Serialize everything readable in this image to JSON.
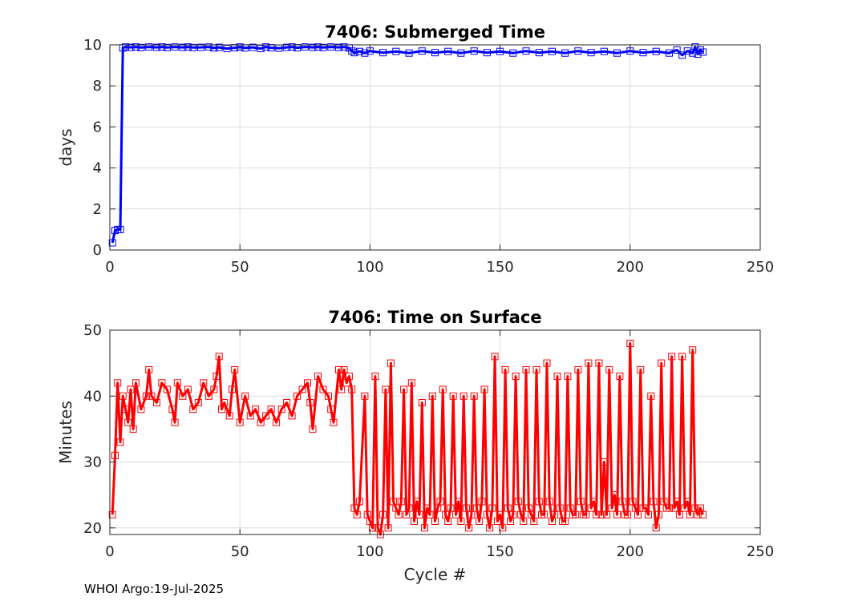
{
  "footer": "WHOI Argo:19-Jul-2025",
  "chart_data": [
    {
      "type": "line",
      "title": "7406: Submerged Time",
      "xlabel": "",
      "ylabel": "days",
      "xlim": [
        0,
        250
      ],
      "ylim": [
        0,
        10
      ],
      "xticks": [
        0,
        50,
        100,
        150,
        200,
        250
      ],
      "yticks": [
        0,
        2,
        4,
        6,
        8,
        10
      ],
      "grid": true,
      "marker": "square",
      "color": "#0000ff",
      "series": [
        {
          "name": "",
          "x": [
            1,
            2,
            3,
            4,
            5,
            6,
            8,
            10,
            12,
            15,
            18,
            20,
            22,
            25,
            28,
            30,
            32,
            35,
            38,
            40,
            42,
            45,
            48,
            50,
            52,
            55,
            58,
            60,
            62,
            65,
            68,
            70,
            72,
            75,
            78,
            80,
            82,
            85,
            88,
            90,
            92,
            93,
            94,
            96,
            98,
            100,
            105,
            110,
            115,
            120,
            125,
            130,
            135,
            140,
            145,
            150,
            155,
            160,
            165,
            170,
            175,
            180,
            185,
            190,
            195,
            200,
            205,
            210,
            215,
            218,
            220,
            222,
            224,
            225,
            226,
            227,
            228
          ],
          "y": [
            0.35,
            0.95,
            1.0,
            1.0,
            9.85,
            9.9,
            9.88,
            9.9,
            9.87,
            9.9,
            9.88,
            9.9,
            9.87,
            9.9,
            9.88,
            9.9,
            9.87,
            9.88,
            9.9,
            9.85,
            9.88,
            9.82,
            9.86,
            9.9,
            9.85,
            9.88,
            9.82,
            9.9,
            9.86,
            9.84,
            9.88,
            9.9,
            9.86,
            9.9,
            9.88,
            9.9,
            9.87,
            9.9,
            9.88,
            9.9,
            9.85,
            9.7,
            9.62,
            9.68,
            9.6,
            9.7,
            9.62,
            9.68,
            9.6,
            9.7,
            9.62,
            9.68,
            9.6,
            9.7,
            9.62,
            9.68,
            9.6,
            9.7,
            9.62,
            9.68,
            9.6,
            9.7,
            9.62,
            9.68,
            9.6,
            9.7,
            9.62,
            9.68,
            9.6,
            9.75,
            9.5,
            9.7,
            9.6,
            9.9,
            9.55,
            9.75,
            9.65
          ]
        }
      ]
    },
    {
      "type": "line",
      "title": "7406: Time on Surface",
      "xlabel": "Cycle #",
      "ylabel": "Minutes",
      "xlim": [
        0,
        250
      ],
      "ylim": [
        19,
        50
      ],
      "xticks": [
        0,
        50,
        100,
        150,
        200,
        250
      ],
      "yticks": [
        20,
        30,
        40,
        50
      ],
      "grid": true,
      "marker": "square",
      "color": "#ff0000",
      "series": [
        {
          "name": "",
          "x": [
            1,
            2,
            3,
            4,
            5,
            6,
            7,
            8,
            9,
            10,
            12,
            14,
            15,
            16,
            18,
            20,
            22,
            24,
            25,
            26,
            28,
            30,
            32,
            34,
            36,
            38,
            40,
            41,
            42,
            43,
            44,
            46,
            47,
            48,
            50,
            52,
            54,
            56,
            58,
            60,
            62,
            64,
            66,
            68,
            70,
            72,
            74,
            76,
            77,
            78,
            80,
            82,
            84,
            85,
            86,
            88,
            89,
            90,
            91,
            92,
            93,
            94,
            95,
            96,
            98,
            99,
            100,
            101,
            102,
            103,
            104,
            105,
            106,
            107,
            108,
            109,
            110,
            111,
            112,
            113,
            114,
            115,
            116,
            117,
            118,
            119,
            120,
            121,
            122,
            123,
            124,
            125,
            126,
            127,
            128,
            129,
            130,
            131,
            132,
            133,
            134,
            135,
            136,
            137,
            138,
            139,
            140,
            141,
            142,
            143,
            144,
            145,
            146,
            147,
            148,
            149,
            150,
            151,
            152,
            153,
            154,
            155,
            156,
            157,
            158,
            159,
            160,
            161,
            162,
            163,
            164,
            165,
            166,
            167,
            168,
            169,
            170,
            171,
            172,
            173,
            174,
            175,
            176,
            177,
            178,
            179,
            180,
            181,
            182,
            183,
            184,
            185,
            186,
            187,
            188,
            189,
            190,
            191,
            192,
            193,
            194,
            195,
            196,
            197,
            198,
            199,
            200,
            201,
            202,
            203,
            204,
            205,
            206,
            207,
            208,
            209,
            210,
            211,
            212,
            213,
            214,
            215,
            216,
            217,
            218,
            219,
            220,
            221,
            222,
            223,
            224,
            225,
            226,
            227,
            228
          ],
          "y": [
            22,
            31,
            42,
            33,
            40,
            38,
            36,
            41,
            35,
            42,
            38,
            40,
            44,
            40,
            39,
            42,
            41,
            38,
            36,
            42,
            40,
            41,
            38,
            39,
            42,
            40,
            41,
            43,
            46,
            38,
            39,
            37,
            41,
            44,
            36,
            40,
            37,
            38,
            36,
            37,
            38,
            36,
            38,
            39,
            37,
            40,
            41,
            42,
            39,
            35,
            43,
            41,
            40,
            38,
            36,
            44,
            41,
            44,
            42,
            43,
            41,
            23,
            22,
            24,
            40,
            22,
            21,
            20,
            43,
            20,
            19,
            22,
            41,
            20,
            45,
            24,
            23,
            22,
            24,
            41,
            22,
            23,
            42,
            21,
            24,
            22,
            39,
            20,
            23,
            22,
            40,
            21,
            23,
            24,
            41,
            22,
            21,
            23,
            40,
            22,
            24,
            21,
            40,
            23,
            20,
            22,
            40,
            23,
            21,
            24,
            41,
            22,
            20,
            23,
            46,
            21,
            22,
            20,
            44,
            23,
            21,
            22,
            43,
            24,
            22,
            21,
            44,
            23,
            22,
            21,
            44,
            24,
            22,
            22,
            45,
            24,
            21,
            22,
            43,
            23,
            21,
            21,
            43,
            23,
            22,
            22,
            44,
            24,
            22,
            22,
            45,
            23,
            24,
            22,
            45,
            22,
            30,
            22,
            44,
            23,
            25,
            22,
            43,
            24,
            22,
            22,
            48,
            24,
            23,
            22,
            44,
            23,
            23,
            22,
            40,
            24,
            20,
            22,
            45,
            24,
            23,
            23,
            46,
            23,
            24,
            22,
            46,
            23,
            24,
            22,
            47,
            23,
            22,
            23,
            22
          ]
        }
      ]
    }
  ]
}
